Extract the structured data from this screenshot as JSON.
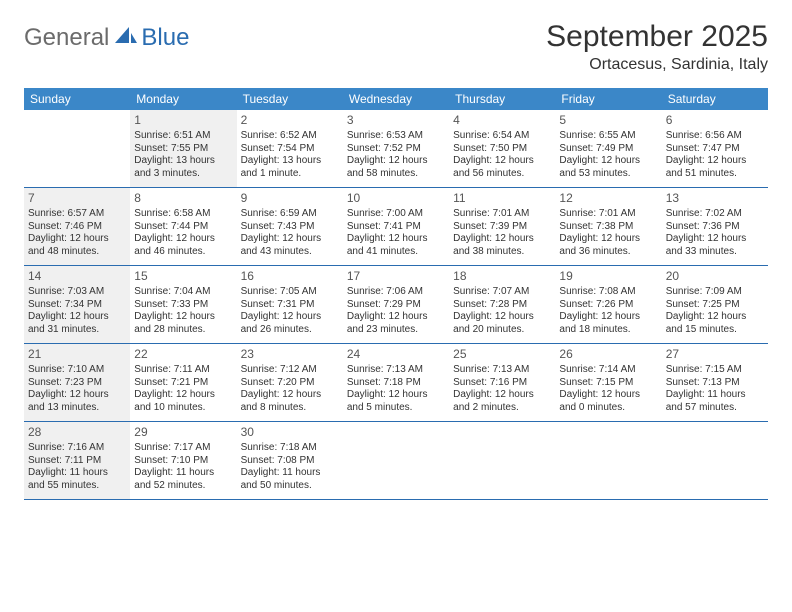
{
  "logo": {
    "general": "General",
    "blue": "Blue"
  },
  "header": {
    "title": "September 2025",
    "location": "Ortacesus, Sardinia, Italy"
  },
  "colors": {
    "header_bg": "#3b87c8",
    "row_border": "#2a6cb0",
    "shaded_bg": "#f0f0f0"
  },
  "weekdays": [
    "Sunday",
    "Monday",
    "Tuesday",
    "Wednesday",
    "Thursday",
    "Friday",
    "Saturday"
  ],
  "weeks": [
    [
      {
        "day": "",
        "shaded": false,
        "lines": []
      },
      {
        "day": "1",
        "shaded": true,
        "lines": [
          "Sunrise: 6:51 AM",
          "Sunset: 7:55 PM",
          "Daylight: 13 hours and 3 minutes."
        ]
      },
      {
        "day": "2",
        "shaded": false,
        "lines": [
          "Sunrise: 6:52 AM",
          "Sunset: 7:54 PM",
          "Daylight: 13 hours and 1 minute."
        ]
      },
      {
        "day": "3",
        "shaded": false,
        "lines": [
          "Sunrise: 6:53 AM",
          "Sunset: 7:52 PM",
          "Daylight: 12 hours and 58 minutes."
        ]
      },
      {
        "day": "4",
        "shaded": false,
        "lines": [
          "Sunrise: 6:54 AM",
          "Sunset: 7:50 PM",
          "Daylight: 12 hours and 56 minutes."
        ]
      },
      {
        "day": "5",
        "shaded": false,
        "lines": [
          "Sunrise: 6:55 AM",
          "Sunset: 7:49 PM",
          "Daylight: 12 hours and 53 minutes."
        ]
      },
      {
        "day": "6",
        "shaded": false,
        "lines": [
          "Sunrise: 6:56 AM",
          "Sunset: 7:47 PM",
          "Daylight: 12 hours and 51 minutes."
        ]
      }
    ],
    [
      {
        "day": "7",
        "shaded": true,
        "lines": [
          "Sunrise: 6:57 AM",
          "Sunset: 7:46 PM",
          "Daylight: 12 hours and 48 minutes."
        ]
      },
      {
        "day": "8",
        "shaded": false,
        "lines": [
          "Sunrise: 6:58 AM",
          "Sunset: 7:44 PM",
          "Daylight: 12 hours and 46 minutes."
        ]
      },
      {
        "day": "9",
        "shaded": false,
        "lines": [
          "Sunrise: 6:59 AM",
          "Sunset: 7:43 PM",
          "Daylight: 12 hours and 43 minutes."
        ]
      },
      {
        "day": "10",
        "shaded": false,
        "lines": [
          "Sunrise: 7:00 AM",
          "Sunset: 7:41 PM",
          "Daylight: 12 hours and 41 minutes."
        ]
      },
      {
        "day": "11",
        "shaded": false,
        "lines": [
          "Sunrise: 7:01 AM",
          "Sunset: 7:39 PM",
          "Daylight: 12 hours and 38 minutes."
        ]
      },
      {
        "day": "12",
        "shaded": false,
        "lines": [
          "Sunrise: 7:01 AM",
          "Sunset: 7:38 PM",
          "Daylight: 12 hours and 36 minutes."
        ]
      },
      {
        "day": "13",
        "shaded": false,
        "lines": [
          "Sunrise: 7:02 AM",
          "Sunset: 7:36 PM",
          "Daylight: 12 hours and 33 minutes."
        ]
      }
    ],
    [
      {
        "day": "14",
        "shaded": true,
        "lines": [
          "Sunrise: 7:03 AM",
          "Sunset: 7:34 PM",
          "Daylight: 12 hours and 31 minutes."
        ]
      },
      {
        "day": "15",
        "shaded": false,
        "lines": [
          "Sunrise: 7:04 AM",
          "Sunset: 7:33 PM",
          "Daylight: 12 hours and 28 minutes."
        ]
      },
      {
        "day": "16",
        "shaded": false,
        "lines": [
          "Sunrise: 7:05 AM",
          "Sunset: 7:31 PM",
          "Daylight: 12 hours and 26 minutes."
        ]
      },
      {
        "day": "17",
        "shaded": false,
        "lines": [
          "Sunrise: 7:06 AM",
          "Sunset: 7:29 PM",
          "Daylight: 12 hours and 23 minutes."
        ]
      },
      {
        "day": "18",
        "shaded": false,
        "lines": [
          "Sunrise: 7:07 AM",
          "Sunset: 7:28 PM",
          "Daylight: 12 hours and 20 minutes."
        ]
      },
      {
        "day": "19",
        "shaded": false,
        "lines": [
          "Sunrise: 7:08 AM",
          "Sunset: 7:26 PM",
          "Daylight: 12 hours and 18 minutes."
        ]
      },
      {
        "day": "20",
        "shaded": false,
        "lines": [
          "Sunrise: 7:09 AM",
          "Sunset: 7:25 PM",
          "Daylight: 12 hours and 15 minutes."
        ]
      }
    ],
    [
      {
        "day": "21",
        "shaded": true,
        "lines": [
          "Sunrise: 7:10 AM",
          "Sunset: 7:23 PM",
          "Daylight: 12 hours and 13 minutes."
        ]
      },
      {
        "day": "22",
        "shaded": false,
        "lines": [
          "Sunrise: 7:11 AM",
          "Sunset: 7:21 PM",
          "Daylight: 12 hours and 10 minutes."
        ]
      },
      {
        "day": "23",
        "shaded": false,
        "lines": [
          "Sunrise: 7:12 AM",
          "Sunset: 7:20 PM",
          "Daylight: 12 hours and 8 minutes."
        ]
      },
      {
        "day": "24",
        "shaded": false,
        "lines": [
          "Sunrise: 7:13 AM",
          "Sunset: 7:18 PM",
          "Daylight: 12 hours and 5 minutes."
        ]
      },
      {
        "day": "25",
        "shaded": false,
        "lines": [
          "Sunrise: 7:13 AM",
          "Sunset: 7:16 PM",
          "Daylight: 12 hours and 2 minutes."
        ]
      },
      {
        "day": "26",
        "shaded": false,
        "lines": [
          "Sunrise: 7:14 AM",
          "Sunset: 7:15 PM",
          "Daylight: 12 hours and 0 minutes."
        ]
      },
      {
        "day": "27",
        "shaded": false,
        "lines": [
          "Sunrise: 7:15 AM",
          "Sunset: 7:13 PM",
          "Daylight: 11 hours and 57 minutes."
        ]
      }
    ],
    [
      {
        "day": "28",
        "shaded": true,
        "lines": [
          "Sunrise: 7:16 AM",
          "Sunset: 7:11 PM",
          "Daylight: 11 hours and 55 minutes."
        ]
      },
      {
        "day": "29",
        "shaded": false,
        "lines": [
          "Sunrise: 7:17 AM",
          "Sunset: 7:10 PM",
          "Daylight: 11 hours and 52 minutes."
        ]
      },
      {
        "day": "30",
        "shaded": false,
        "lines": [
          "Sunrise: 7:18 AM",
          "Sunset: 7:08 PM",
          "Daylight: 11 hours and 50 minutes."
        ]
      },
      {
        "day": "",
        "shaded": false,
        "lines": []
      },
      {
        "day": "",
        "shaded": false,
        "lines": []
      },
      {
        "day": "",
        "shaded": false,
        "lines": []
      },
      {
        "day": "",
        "shaded": false,
        "lines": []
      }
    ]
  ]
}
